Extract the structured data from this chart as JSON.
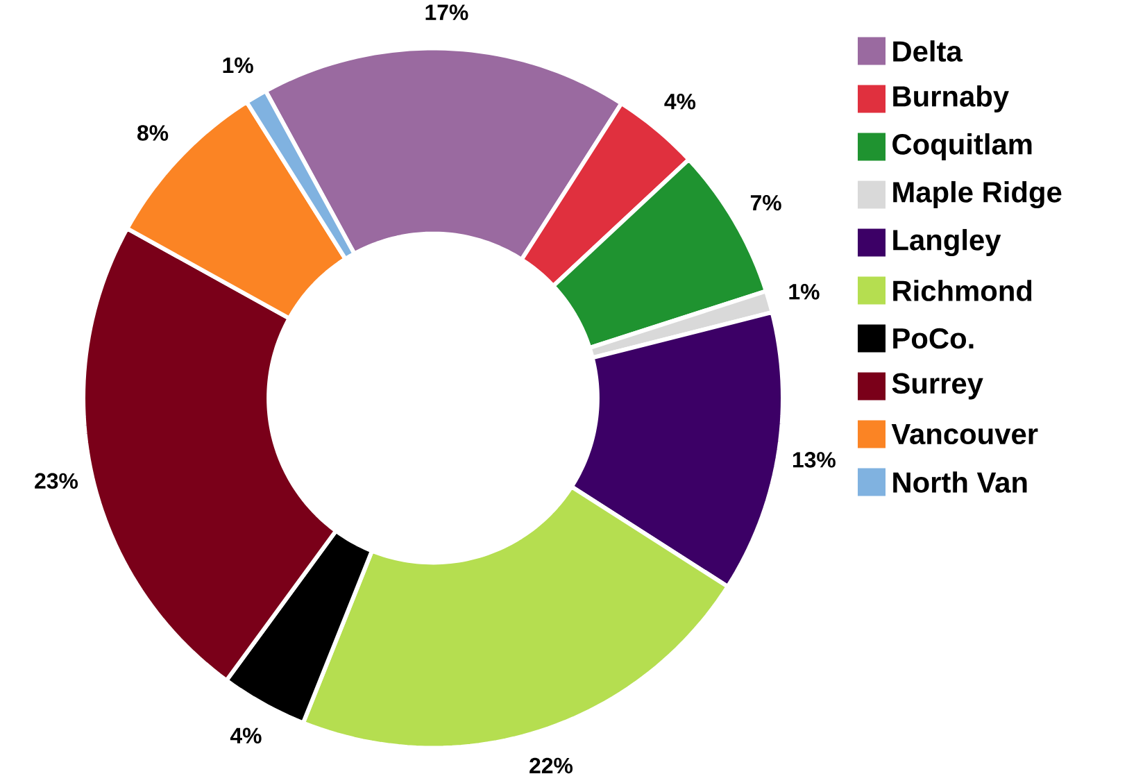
{
  "chart_data": {
    "type": "donut",
    "categories": [
      "Delta",
      "Burnaby",
      "Coquitlam",
      "Maple Ridge",
      "Langley",
      "Richmond",
      "PoCo.",
      "Surrey",
      "Vancouver",
      "North Van"
    ],
    "values": [
      17,
      4,
      7,
      1,
      13,
      22,
      4,
      23,
      8,
      1
    ],
    "value_labels": [
      "17%",
      "4%",
      "7%",
      "1%",
      "13%",
      "22%",
      "4%",
      "23%",
      "8%",
      "1%"
    ],
    "colors": [
      "#9a6aa0",
      "#e0303e",
      "#1f9330",
      "#d9d9d9",
      "#3c0066",
      "#b5de50",
      "#000000",
      "#7a0019",
      "#fb8424",
      "#80b2e0"
    ],
    "legend": "right"
  }
}
